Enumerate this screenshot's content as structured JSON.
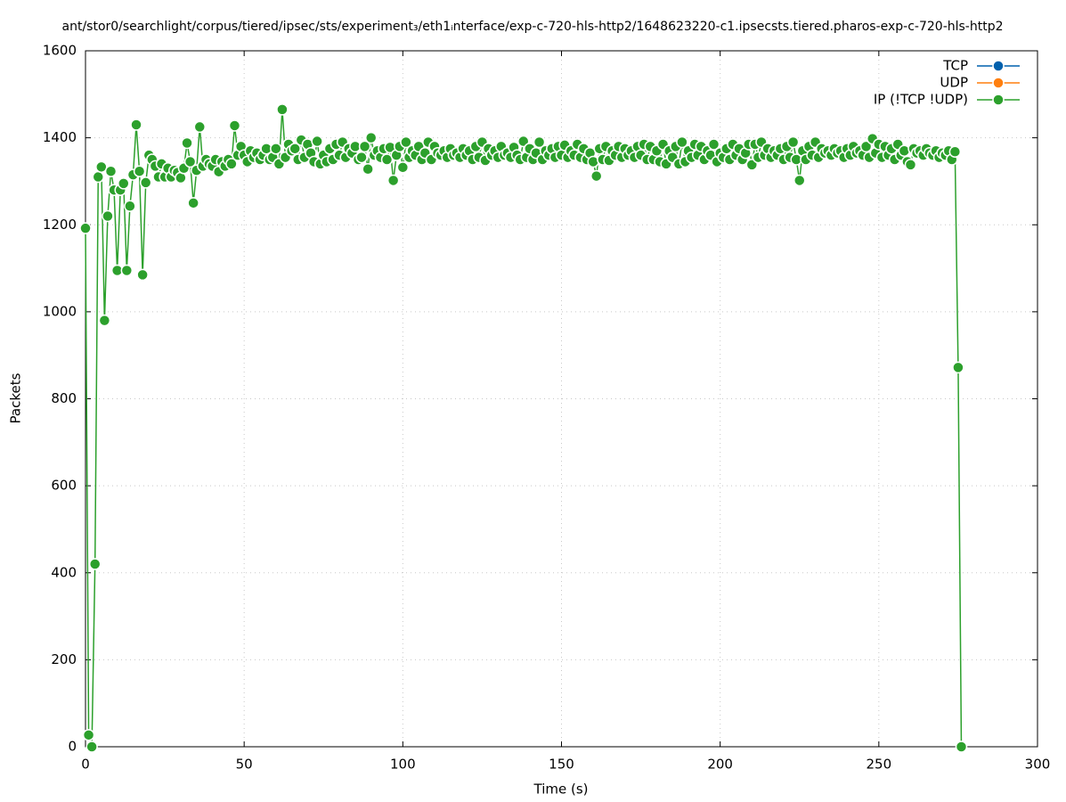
{
  "chart_data": {
    "type": "line",
    "title": "ant/stor0/searchlight/corpus/tiered/ipsec/sts/experiment₃/eth1ᵢnterface/exp-c-720-hls-http2/1648623220-c1.ipsecsts.tiered.pharos-exp-c-720-hls-http2",
    "x_label": "Time (s)",
    "y_label": "Packets",
    "xlim": [
      0,
      300
    ],
    "xticks": [
      0,
      50,
      100,
      150,
      200,
      250,
      300
    ],
    "ylim": [
      0,
      1600
    ],
    "yticks": [
      0,
      200,
      400,
      600,
      800,
      1000,
      1200,
      1400,
      1600
    ],
    "grid": true,
    "legend": "top-right",
    "series": [
      {
        "name": "TCP",
        "color": "#0060ad",
        "x": [],
        "values": []
      },
      {
        "name": "UDP",
        "color": "#ff7f0e",
        "x": [],
        "values": []
      },
      {
        "name": "IP (!TCP  !UDP)",
        "color": "#2ca02c",
        "x": [
          0,
          1,
          2,
          3,
          4,
          5,
          6,
          7,
          8,
          9,
          10,
          11,
          12,
          13,
          14,
          15,
          16,
          17,
          18,
          19,
          20,
          21,
          22,
          23,
          24,
          25,
          26,
          27,
          28,
          29,
          30,
          31,
          32,
          33,
          34,
          35,
          36,
          37,
          38,
          39,
          40,
          41,
          42,
          43,
          44,
          45,
          46,
          47,
          48,
          49,
          50,
          51,
          52,
          53,
          54,
          55,
          56,
          57,
          58,
          59,
          60,
          61,
          62,
          63,
          64,
          65,
          66,
          67,
          68,
          69,
          70,
          71,
          72,
          73,
          74,
          75,
          76,
          77,
          78,
          79,
          80,
          81,
          82,
          83,
          84,
          85,
          86,
          87,
          88,
          89,
          90,
          91,
          92,
          93,
          94,
          95,
          96,
          97,
          98,
          99,
          100,
          101,
          102,
          103,
          104,
          105,
          106,
          107,
          108,
          109,
          110,
          111,
          112,
          113,
          114,
          115,
          116,
          117,
          118,
          119,
          120,
          121,
          122,
          123,
          124,
          125,
          126,
          127,
          128,
          129,
          130,
          131,
          132,
          133,
          134,
          135,
          136,
          137,
          138,
          139,
          140,
          141,
          142,
          143,
          144,
          145,
          146,
          147,
          148,
          149,
          150,
          151,
          152,
          153,
          154,
          155,
          156,
          157,
          158,
          159,
          160,
          161,
          162,
          163,
          164,
          165,
          166,
          167,
          168,
          169,
          170,
          171,
          172,
          173,
          174,
          175,
          176,
          177,
          178,
          179,
          180,
          181,
          182,
          183,
          184,
          185,
          186,
          187,
          188,
          189,
          190,
          191,
          192,
          193,
          194,
          195,
          196,
          197,
          198,
          199,
          200,
          201,
          202,
          203,
          204,
          205,
          206,
          207,
          208,
          209,
          210,
          211,
          212,
          213,
          214,
          215,
          216,
          217,
          218,
          219,
          220,
          221,
          222,
          223,
          224,
          225,
          226,
          227,
          228,
          229,
          230,
          231,
          232,
          233,
          234,
          235,
          236,
          237,
          238,
          239,
          240,
          241,
          242,
          243,
          244,
          245,
          246,
          247,
          248,
          249,
          250,
          251,
          252,
          253,
          254,
          255,
          256,
          257,
          258,
          259,
          260,
          261,
          262,
          263,
          264,
          265,
          266,
          267,
          268,
          269,
          270,
          271,
          272,
          273,
          274,
          275,
          276
        ],
        "values": [
          1192,
          27,
          0,
          420,
          1310,
          1333,
          980,
          1220,
          1323,
          1280,
          1095,
          1280,
          1295,
          1095,
          1243,
          1315,
          1430,
          1323,
          1085,
          1297,
          1360,
          1350,
          1335,
          1310,
          1340,
          1310,
          1330,
          1310,
          1325,
          1320,
          1308,
          1330,
          1388,
          1345,
          1250,
          1325,
          1425,
          1335,
          1350,
          1340,
          1335,
          1350,
          1322,
          1345,
          1335,
          1350,
          1340,
          1428,
          1360,
          1380,
          1360,
          1345,
          1370,
          1355,
          1365,
          1350,
          1360,
          1375,
          1350,
          1355,
          1375,
          1340,
          1465,
          1355,
          1385,
          1370,
          1375,
          1350,
          1395,
          1355,
          1385,
          1365,
          1345,
          1392,
          1340,
          1360,
          1345,
          1375,
          1350,
          1385,
          1360,
          1390,
          1355,
          1375,
          1365,
          1380,
          1350,
          1355,
          1380,
          1328,
          1400,
          1360,
          1370,
          1355,
          1375,
          1350,
          1378,
          1302,
          1360,
          1380,
          1332,
          1390,
          1355,
          1370,
          1360,
          1380,
          1350,
          1365,
          1390,
          1350,
          1380,
          1365,
          1360,
          1370,
          1355,
          1375,
          1360,
          1365,
          1355,
          1375,
          1360,
          1370,
          1350,
          1380,
          1355,
          1390,
          1348,
          1375,
          1360,
          1370,
          1355,
          1380,
          1360,
          1365,
          1355,
          1378,
          1360,
          1350,
          1392,
          1355,
          1375,
          1350,
          1365,
          1390,
          1350,
          1370,
          1360,
          1375,
          1355,
          1380,
          1360,
          1383,
          1355,
          1370,
          1360,
          1385,
          1355,
          1375,
          1350,
          1365,
          1345,
          1312,
          1375,
          1350,
          1380,
          1348,
          1370,
          1360,
          1380,
          1355,
          1375,
          1360,
          1370,
          1355,
          1380,
          1360,
          1385,
          1350,
          1380,
          1350,
          1370,
          1345,
          1385,
          1340,
          1370,
          1355,
          1380,
          1340,
          1390,
          1345,
          1370,
          1355,
          1385,
          1360,
          1380,
          1350,
          1370,
          1360,
          1385,
          1345,
          1365,
          1355,
          1375,
          1350,
          1385,
          1360,
          1375,
          1350,
          1365,
          1385,
          1338,
          1385,
          1355,
          1390,
          1360,
          1375,
          1355,
          1370,
          1360,
          1375,
          1350,
          1380,
          1355,
          1390,
          1350,
          1302,
          1370,
          1350,
          1380,
          1360,
          1390,
          1355,
          1375,
          1365,
          1370,
          1360,
          1375,
          1365,
          1370,
          1355,
          1375,
          1360,
          1380,
          1365,
          1370,
          1360,
          1380,
          1355,
          1398,
          1365,
          1385,
          1355,
          1380,
          1360,
          1375,
          1350,
          1385,
          1360,
          1370,
          1345,
          1338,
          1375,
          1365,
          1370,
          1360,
          1375,
          1365,
          1360,
          1370,
          1355,
          1365,
          1360,
          1370,
          1350,
          1368,
          872,
          0
        ]
      }
    ]
  }
}
